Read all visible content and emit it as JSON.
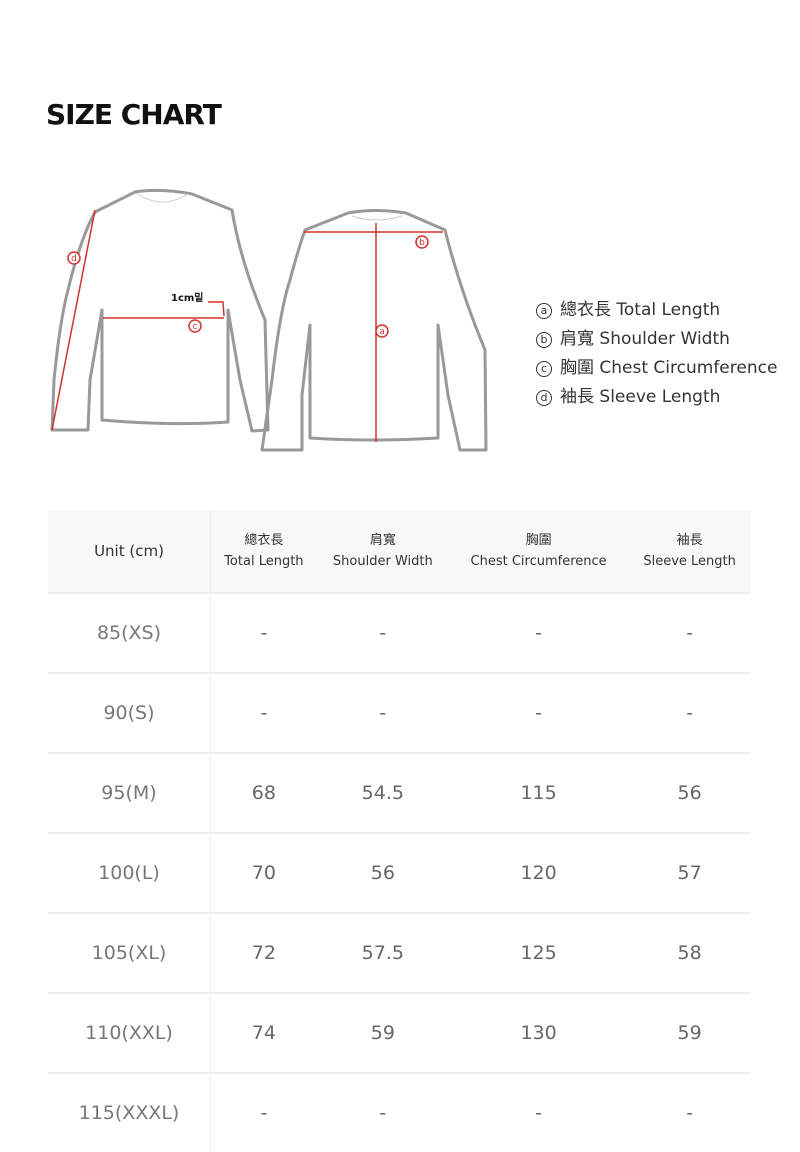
{
  "title": "SIZE CHART",
  "diagram": {
    "note": "1cm밑",
    "markers": [
      "a",
      "b",
      "c",
      "d"
    ]
  },
  "legend": [
    {
      "mark": "a",
      "text": "總衣長 Total Length"
    },
    {
      "mark": "b",
      "text": "肩寬 Shoulder Width"
    },
    {
      "mark": "c",
      "text": "胸圍 Chest Circumference"
    },
    {
      "mark": "d",
      "text": "袖長 Sleeve Length"
    }
  ],
  "colors": {
    "accent": "#d0342c",
    "outline": "#999999"
  },
  "table": {
    "unit_header": "Unit (cm)",
    "headers": [
      {
        "zh": "總衣長",
        "en": "Total Length"
      },
      {
        "zh": "肩寬",
        "en": "Shoulder Width"
      },
      {
        "zh": "胸圍",
        "en": "Chest Circumference"
      },
      {
        "zh": "袖長",
        "en": "Sleeve Length"
      }
    ],
    "rows": [
      {
        "size": "85(XS)",
        "values": [
          "-",
          "-",
          "-",
          "-"
        ]
      },
      {
        "size": "90(S)",
        "values": [
          "-",
          "-",
          "-",
          "-"
        ]
      },
      {
        "size": "95(M)",
        "values": [
          "68",
          "54.5",
          "115",
          "56"
        ]
      },
      {
        "size": "100(L)",
        "values": [
          "70",
          "56",
          "120",
          "57"
        ]
      },
      {
        "size": "105(XL)",
        "values": [
          "72",
          "57.5",
          "125",
          "58"
        ]
      },
      {
        "size": "110(XXL)",
        "values": [
          "74",
          "59",
          "130",
          "59"
        ]
      },
      {
        "size": "115(XXXL)",
        "values": [
          "-",
          "-",
          "-",
          "-"
        ]
      }
    ]
  }
}
